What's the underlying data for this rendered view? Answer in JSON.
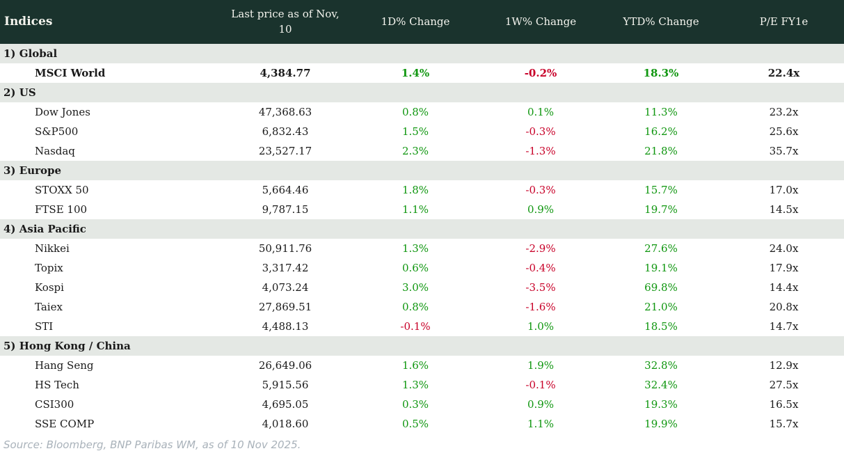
{
  "table": {
    "title": "Indices",
    "columns": [
      "Last price as of Nov, 10",
      "1D% Change",
      "1W% Change",
      "YTD% Change",
      "P/E FY1e"
    ],
    "sections": [
      {
        "label": "1) Global",
        "rows": [
          {
            "name": "MSCI World",
            "bold": true,
            "last": "4,384.77",
            "d1": "1.4%",
            "w1": "-0.2%",
            "ytd": "18.3%",
            "pe": "22.4x"
          }
        ]
      },
      {
        "label": "2) US",
        "rows": [
          {
            "name": "Dow Jones",
            "bold": false,
            "last": "47,368.63",
            "d1": "0.8%",
            "w1": "0.1%",
            "ytd": "11.3%",
            "pe": "23.2x"
          },
          {
            "name": "S&P500",
            "bold": false,
            "last": "6,832.43",
            "d1": "1.5%",
            "w1": "-0.3%",
            "ytd": "16.2%",
            "pe": "25.6x"
          },
          {
            "name": "Nasdaq",
            "bold": false,
            "last": "23,527.17",
            "d1": "2.3%",
            "w1": "-1.3%",
            "ytd": "21.8%",
            "pe": "35.7x"
          }
        ]
      },
      {
        "label": "3) Europe",
        "rows": [
          {
            "name": "STOXX 50",
            "bold": false,
            "last": "5,664.46",
            "d1": "1.8%",
            "w1": "-0.3%",
            "ytd": "15.7%",
            "pe": "17.0x"
          },
          {
            "name": "FTSE 100",
            "bold": false,
            "last": "9,787.15",
            "d1": "1.1%",
            "w1": "0.9%",
            "ytd": "19.7%",
            "pe": "14.5x"
          }
        ]
      },
      {
        "label": "4) Asia Pacific",
        "rows": [
          {
            "name": "Nikkei",
            "bold": false,
            "last": "50,911.76",
            "d1": "1.3%",
            "w1": "-2.9%",
            "ytd": "27.6%",
            "pe": "24.0x"
          },
          {
            "name": "Topix",
            "bold": false,
            "last": "3,317.42",
            "d1": "0.6%",
            "w1": "-0.4%",
            "ytd": "19.1%",
            "pe": "17.9x"
          },
          {
            "name": "Kospi",
            "bold": false,
            "last": "4,073.24",
            "d1": "3.0%",
            "w1": "-3.5%",
            "ytd": "69.8%",
            "pe": "14.4x"
          },
          {
            "name": "Taiex",
            "bold": false,
            "last": "27,869.51",
            "d1": "0.8%",
            "w1": "-1.6%",
            "ytd": "21.0%",
            "pe": "20.8x"
          },
          {
            "name": "STI",
            "bold": false,
            "last": "4,488.13",
            "d1": "-0.1%",
            "w1": "1.0%",
            "ytd": "18.5%",
            "pe": "14.7x"
          }
        ]
      },
      {
        "label": "5) Hong Kong / China",
        "rows": [
          {
            "name": "Hang Seng",
            "bold": false,
            "last": "26,649.06",
            "d1": "1.6%",
            "w1": "1.9%",
            "ytd": "32.8%",
            "pe": "12.9x"
          },
          {
            "name": "HS Tech",
            "bold": false,
            "last": "5,915.56",
            "d1": "1.3%",
            "w1": "-0.1%",
            "ytd": "32.4%",
            "pe": "27.5x"
          },
          {
            "name": "CSI300",
            "bold": false,
            "last": "4,695.05",
            "d1": "0.3%",
            "w1": "0.9%",
            "ytd": "19.3%",
            "pe": "16.5x"
          },
          {
            "name": "SSE COMP",
            "bold": false,
            "last": "4,018.60",
            "d1": "0.5%",
            "w1": "1.1%",
            "ytd": "19.9%",
            "pe": "15.7x"
          }
        ]
      }
    ]
  },
  "footer": {
    "source": "Source: Bloomberg, BNP Paribas WM, as of 10 Nov 2025."
  },
  "colors": {
    "header_bg": "#1a332d",
    "header_text": "#f4f4ee",
    "section_bg": "#e4e8e4",
    "positive": "#0f960f",
    "negative": "#c80028",
    "source_text": "#a9b2ba"
  }
}
